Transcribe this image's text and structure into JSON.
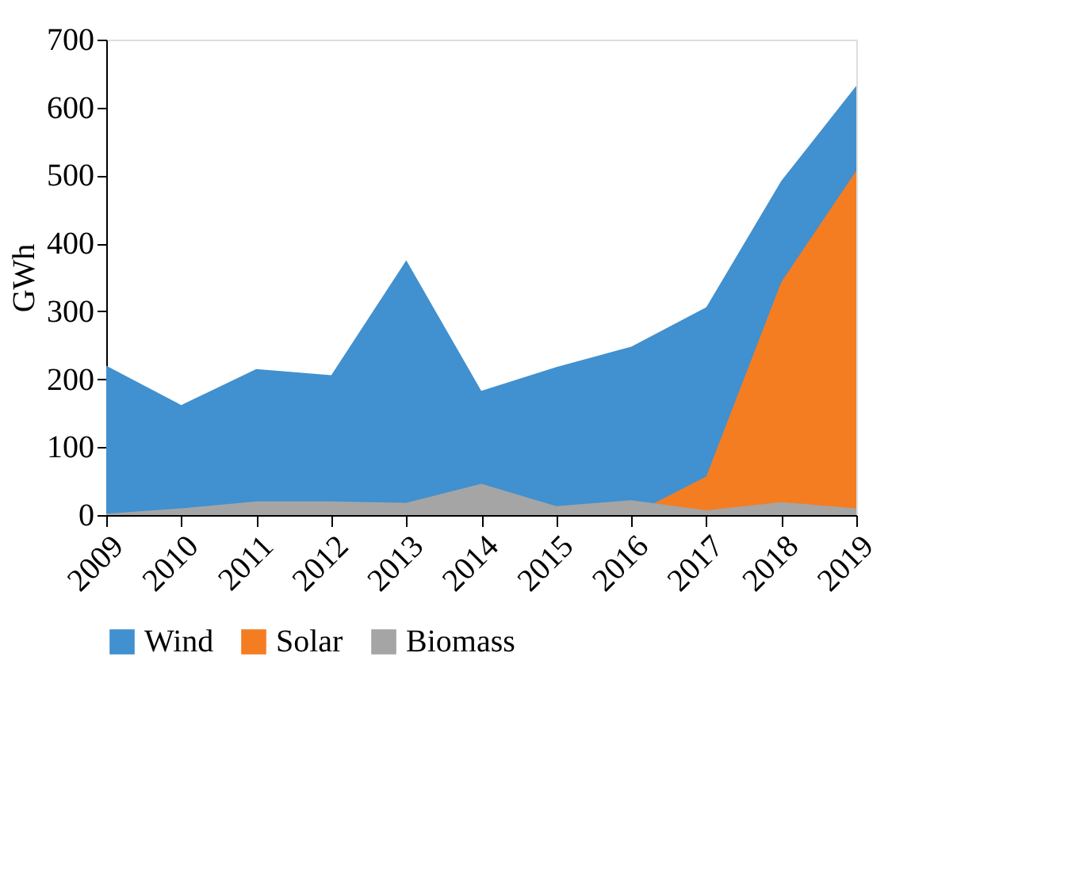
{
  "chart_data": {
    "type": "area",
    "ylabel": "GWh",
    "categories": [
      "2009",
      "2010",
      "2011",
      "2012",
      "2013",
      "2014",
      "2015",
      "2016",
      "2017",
      "2018",
      "2019"
    ],
    "series": [
      {
        "name": "Wind",
        "color": "#4190cf",
        "values": [
          220,
          162,
          215,
          206,
          375,
          183,
          218,
          248,
          306,
          492,
          632
        ]
      },
      {
        "name": "Solar",
        "color": "#f47d22",
        "values": [
          0,
          0,
          0,
          0,
          0,
          0,
          0,
          0,
          57,
          343,
          507
        ]
      },
      {
        "name": "Biomass",
        "color": "#a5a5a5",
        "values": [
          2,
          10,
          20,
          20,
          18,
          46,
          13,
          22,
          7,
          19,
          10
        ]
      }
    ],
    "ylim": [
      0,
      700
    ],
    "yticks": [
      0,
      100,
      200,
      300,
      400,
      500,
      600,
      700
    ],
    "grid": false,
    "legend": "bottom"
  }
}
